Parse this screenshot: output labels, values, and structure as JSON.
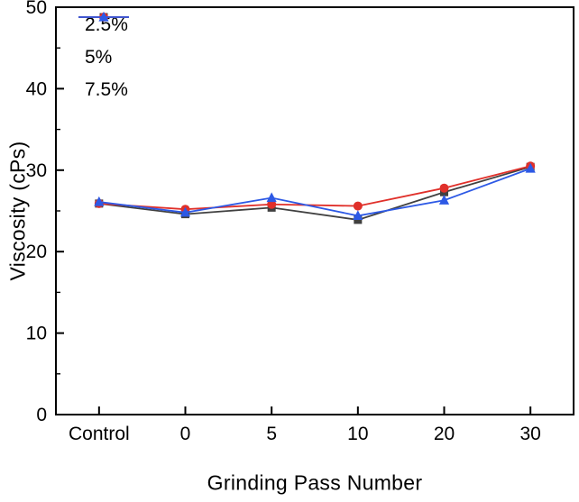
{
  "chart_data": {
    "type": "line",
    "title": "",
    "xlabel": "Grinding Pass Number",
    "ylabel": "Viscosity (cPs)",
    "categories": [
      "Control",
      "0",
      "5",
      "10",
      "20",
      "30"
    ],
    "ylim": [
      0,
      50
    ],
    "yticks": [
      0,
      10,
      20,
      30,
      40,
      50
    ],
    "yminor_step": 5,
    "grid": false,
    "legend_position": "top-left-inside",
    "frame": "full-box",
    "series": [
      {
        "name": "2.5%",
        "marker": "square",
        "color": "#404040",
        "values": [
          25.9,
          24.6,
          25.4,
          23.9,
          27.3,
          30.4
        ]
      },
      {
        "name": "5%",
        "marker": "circle",
        "color": "#e0302a",
        "values": [
          25.9,
          25.2,
          25.8,
          25.6,
          27.8,
          30.5
        ]
      },
      {
        "name": "7.5%",
        "marker": "triangle",
        "color": "#2d59e5",
        "values": [
          26.1,
          24.8,
          26.6,
          24.4,
          26.3,
          30.2
        ]
      }
    ]
  }
}
